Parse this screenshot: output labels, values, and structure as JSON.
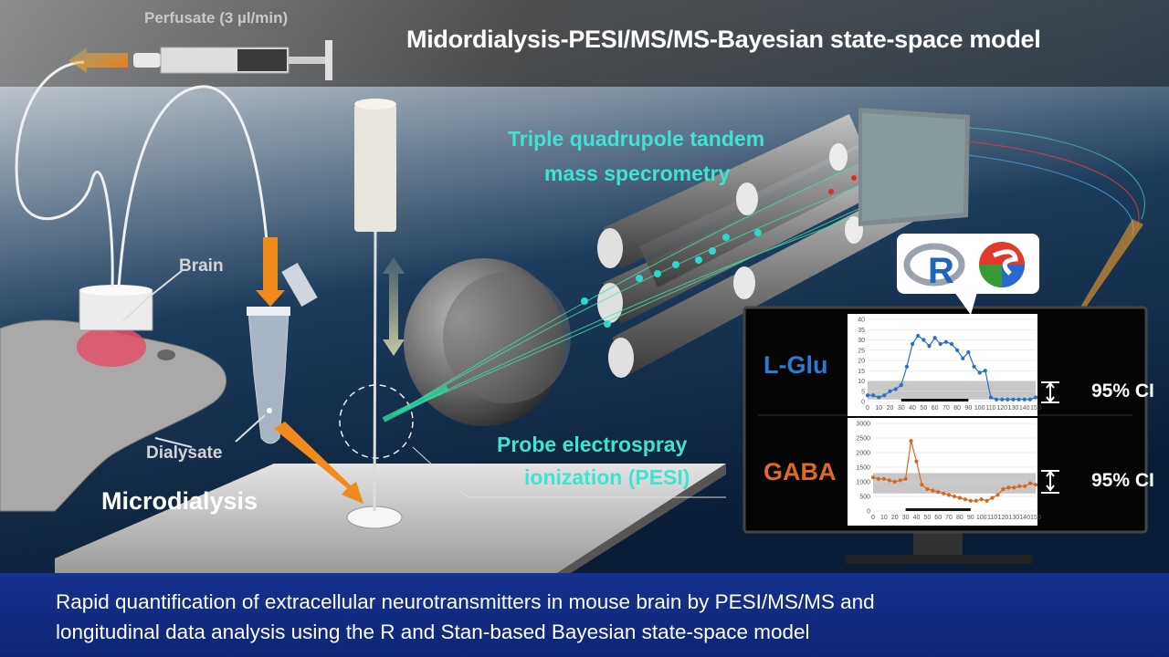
{
  "title": "Midordialysis-PESI/MS/MS-Bayesian state-space model",
  "labels": {
    "perfusate": "Perfusate (3 µl/min)",
    "triple_quad_line1": "Triple quadrupole tandem",
    "triple_quad_line2": "mass specrometry",
    "pesi_line1": "Probe electrospray",
    "pesi_line2": "ionization (PESI)",
    "brain": "Brain",
    "dialysate": "Dialysate",
    "microdialysis": "Microdialysis"
  },
  "software_icons": [
    "r-logo-icon",
    "stan-logo-icon"
  ],
  "monitor": {
    "lglu_label": "L-Glu",
    "gaba_label": "GABA",
    "ci_label_1": "95% CI",
    "ci_label_2": "95% CI"
  },
  "chart_data": [
    {
      "type": "line",
      "series_label": "L-Glu",
      "color": "#2a6fc0",
      "x": [
        0,
        5,
        10,
        15,
        20,
        25,
        30,
        35,
        40,
        45,
        50,
        55,
        60,
        65,
        70,
        75,
        80,
        85,
        90,
        95,
        100,
        105,
        110,
        115,
        120,
        125,
        130,
        135,
        140,
        145,
        150
      ],
      "series": [
        {
          "values": [
            3,
            3,
            2,
            3,
            5,
            6,
            8,
            17,
            28,
            32,
            30,
            27,
            31,
            28,
            29,
            28,
            25,
            21,
            24,
            17,
            14,
            15,
            2,
            1,
            1,
            1,
            1,
            1,
            1,
            1,
            2
          ]
        }
      ],
      "ylim": [
        0,
        40
      ],
      "yticks": [
        0,
        5,
        10,
        15,
        20,
        25,
        30,
        35,
        40
      ],
      "xticks": [
        0,
        10,
        20,
        30,
        40,
        50,
        60,
        70,
        80,
        90,
        100,
        110,
        120,
        130,
        140,
        150
      ],
      "ci_band": [
        1,
        10
      ]
    },
    {
      "type": "line",
      "series_label": "GABA",
      "color": "#d9661e",
      "x": [
        0,
        5,
        10,
        15,
        20,
        25,
        30,
        35,
        40,
        45,
        50,
        55,
        60,
        65,
        70,
        75,
        80,
        85,
        90,
        95,
        100,
        105,
        110,
        115,
        120,
        125,
        130,
        135,
        140,
        145,
        150
      ],
      "series": [
        {
          "values": [
            1150,
            1100,
            1100,
            1050,
            1000,
            1050,
            1100,
            2400,
            1700,
            900,
            750,
            700,
            650,
            600,
            550,
            500,
            450,
            400,
            350,
            350,
            400,
            350,
            450,
            550,
            750,
            800,
            800,
            850,
            850,
            950,
            900
          ]
        }
      ],
      "ylim": [
        0,
        3000
      ],
      "yticks": [
        0,
        500,
        1000,
        1500,
        2000,
        2500,
        3000
      ],
      "xticks": [
        0,
        10,
        20,
        30,
        40,
        50,
        60,
        70,
        80,
        90,
        100,
        110,
        120,
        130,
        140,
        150
      ],
      "ci_band": [
        600,
        1300
      ]
    }
  ],
  "caption": {
    "line1": "Rapid quantification of extracellular neurotransmitters in mouse brain by PESI/MS/MS and",
    "line2": "longitudinal data analysis using the R and Stan-based Bayesian state-space model"
  },
  "colors": {
    "banner": "#14328f",
    "accent_cyan": "#3fe3d2",
    "arrow_orange": "#f09020",
    "lglu_blue": "#2a7ad6",
    "gaba_orange": "#e06a22"
  }
}
